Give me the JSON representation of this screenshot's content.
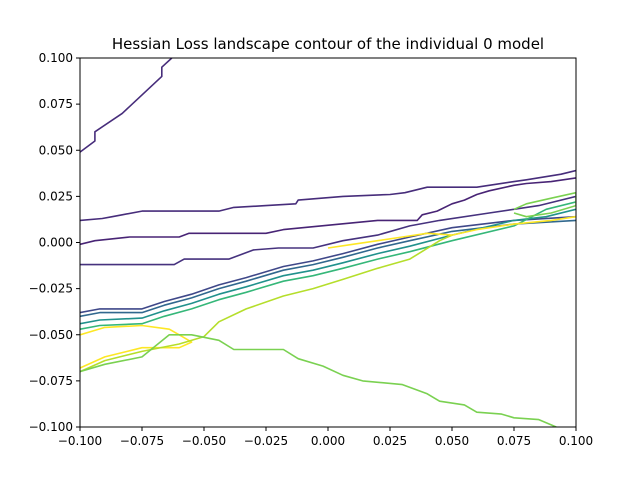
{
  "chart_data": {
    "type": "contour",
    "title": "Hessian Loss landscape contour of the individual 0 model",
    "xlabel": "",
    "ylabel": "",
    "xlim": [
      -0.1,
      0.1
    ],
    "ylim": [
      -0.1,
      0.1
    ],
    "grid": false,
    "xticks": [
      -0.1,
      -0.075,
      -0.05,
      -0.025,
      0.0,
      0.025,
      0.05,
      0.075,
      0.1
    ],
    "xtick_labels": [
      "−0.100",
      "−0.075",
      "−0.050",
      "−0.025",
      "0.000",
      "0.025",
      "0.050",
      "0.075",
      "0.100"
    ],
    "yticks": [
      -0.1,
      -0.075,
      -0.05,
      -0.025,
      0.0,
      0.025,
      0.05,
      0.075,
      0.1
    ],
    "ytick_labels": [
      "−0.100",
      "−0.075",
      "−0.050",
      "−0.025",
      "0.000",
      "0.025",
      "0.050",
      "0.075",
      "0.100"
    ],
    "contours": [
      {
        "color": "#472d7b",
        "points": [
          [
            -0.1,
            0.049
          ],
          [
            -0.094,
            0.055
          ],
          [
            -0.094,
            0.06
          ],
          [
            -0.083,
            0.07
          ],
          [
            -0.075,
            0.08
          ],
          [
            -0.067,
            0.09
          ],
          [
            -0.067,
            0.095
          ],
          [
            -0.063,
            0.1
          ]
        ]
      },
      {
        "color": "#472d7b",
        "points": [
          [
            -0.1,
            0.012
          ],
          [
            -0.091,
            0.013
          ],
          [
            -0.087,
            0.014
          ],
          [
            -0.083,
            0.015
          ],
          [
            -0.075,
            0.017
          ],
          [
            -0.044,
            0.017
          ],
          [
            -0.038,
            0.019
          ],
          [
            -0.025,
            0.02
          ],
          [
            -0.013,
            0.021
          ],
          [
            -0.012,
            0.023
          ],
          [
            0.006,
            0.025
          ],
          [
            0.025,
            0.026
          ],
          [
            0.031,
            0.027
          ],
          [
            0.04,
            0.03
          ],
          [
            0.06,
            0.03
          ],
          [
            0.065,
            0.031
          ],
          [
            0.075,
            0.033
          ],
          [
            0.08,
            0.034
          ],
          [
            0.094,
            0.037
          ],
          [
            0.1,
            0.039
          ]
        ]
      },
      {
        "color": "#482475",
        "points": [
          [
            -0.1,
            -0.001
          ],
          [
            -0.094,
            0.001
          ],
          [
            -0.08,
            0.003
          ],
          [
            -0.06,
            0.003
          ],
          [
            -0.056,
            0.005
          ],
          [
            -0.025,
            0.005
          ],
          [
            -0.018,
            0.007
          ],
          [
            0.02,
            0.012
          ],
          [
            0.036,
            0.012
          ],
          [
            0.038,
            0.015
          ],
          [
            0.044,
            0.017
          ],
          [
            0.05,
            0.021
          ],
          [
            0.055,
            0.023
          ],
          [
            0.06,
            0.026
          ],
          [
            0.065,
            0.028
          ],
          [
            0.075,
            0.031
          ],
          [
            0.08,
            0.032
          ],
          [
            0.09,
            0.033
          ],
          [
            0.1,
            0.035
          ]
        ]
      },
      {
        "color": "#46327e",
        "points": [
          [
            -0.1,
            -0.012
          ],
          [
            -0.062,
            -0.012
          ],
          [
            -0.058,
            -0.009
          ],
          [
            -0.04,
            -0.009
          ],
          [
            -0.03,
            -0.004
          ],
          [
            -0.02,
            -0.003
          ],
          [
            -0.006,
            -0.003
          ],
          [
            0.006,
            0.001
          ],
          [
            0.02,
            0.004
          ],
          [
            0.033,
            0.009
          ],
          [
            0.045,
            0.012
          ],
          [
            0.065,
            0.016
          ],
          [
            0.085,
            0.02
          ],
          [
            0.1,
            0.025
          ]
        ]
      },
      {
        "color": "#3f4889",
        "points": [
          [
            -0.1,
            -0.038
          ],
          [
            -0.092,
            -0.036
          ],
          [
            -0.075,
            -0.036
          ],
          [
            -0.066,
            -0.032
          ],
          [
            -0.055,
            -0.028
          ],
          [
            -0.044,
            -0.023
          ],
          [
            -0.033,
            -0.019
          ],
          [
            -0.018,
            -0.013
          ],
          [
            -0.006,
            -0.01
          ],
          [
            0.006,
            -0.006
          ],
          [
            0.02,
            -0.001
          ],
          [
            0.033,
            0.003
          ],
          [
            0.05,
            0.008
          ],
          [
            0.075,
            0.012
          ],
          [
            0.1,
            0.014
          ]
        ]
      },
      {
        "color": "#31688e",
        "points": [
          [
            -0.1,
            -0.04
          ],
          [
            -0.092,
            -0.038
          ],
          [
            -0.075,
            -0.038
          ],
          [
            -0.066,
            -0.034
          ],
          [
            -0.055,
            -0.03
          ],
          [
            -0.044,
            -0.025
          ],
          [
            -0.033,
            -0.021
          ],
          [
            -0.018,
            -0.015
          ],
          [
            -0.006,
            -0.012
          ],
          [
            0.006,
            -0.008
          ],
          [
            0.02,
            -0.003
          ],
          [
            0.033,
            0.001
          ],
          [
            0.05,
            0.006
          ],
          [
            0.075,
            0.01
          ],
          [
            0.1,
            0.012
          ]
        ]
      },
      {
        "color": "#21918c",
        "points": [
          [
            -0.1,
            -0.044
          ],
          [
            -0.092,
            -0.042
          ],
          [
            -0.075,
            -0.041
          ],
          [
            -0.066,
            -0.037
          ],
          [
            -0.055,
            -0.033
          ],
          [
            -0.044,
            -0.028
          ],
          [
            -0.033,
            -0.024
          ],
          [
            -0.018,
            -0.018
          ],
          [
            -0.006,
            -0.015
          ],
          [
            0.006,
            -0.011
          ],
          [
            0.02,
            -0.006
          ],
          [
            0.033,
            -0.002
          ],
          [
            0.05,
            0.004
          ],
          [
            0.075,
            0.012
          ],
          [
            0.088,
            0.014
          ],
          [
            0.1,
            0.018
          ]
        ]
      },
      {
        "color": "#35b779",
        "points": [
          [
            -0.1,
            -0.047
          ],
          [
            -0.092,
            -0.045
          ],
          [
            -0.075,
            -0.044
          ],
          [
            -0.066,
            -0.04
          ],
          [
            -0.055,
            -0.036
          ],
          [
            -0.044,
            -0.031
          ],
          [
            -0.033,
            -0.027
          ],
          [
            -0.018,
            -0.021
          ],
          [
            -0.006,
            -0.018
          ],
          [
            0.006,
            -0.014
          ],
          [
            0.02,
            -0.009
          ],
          [
            0.033,
            -0.005
          ],
          [
            0.05,
            0.001
          ],
          [
            0.075,
            0.009
          ],
          [
            0.088,
            0.018
          ],
          [
            0.1,
            0.022
          ]
        ]
      },
      {
        "color": "#fde725",
        "points": [
          [
            -0.1,
            -0.05
          ],
          [
            -0.09,
            -0.046
          ],
          [
            -0.075,
            -0.045
          ],
          [
            -0.064,
            -0.047
          ],
          [
            -0.06,
            -0.05
          ],
          [
            -0.055,
            -0.054
          ],
          [
            -0.06,
            -0.057
          ],
          [
            -0.075,
            -0.057
          ],
          [
            -0.09,
            -0.062
          ],
          [
            -0.1,
            -0.068
          ]
        ]
      },
      {
        "color": "#b5de2b",
        "points": [
          [
            -0.1,
            -0.07
          ],
          [
            -0.09,
            -0.064
          ],
          [
            -0.075,
            -0.059
          ],
          [
            -0.06,
            -0.055
          ],
          [
            -0.05,
            -0.051
          ],
          [
            -0.044,
            -0.043
          ],
          [
            -0.033,
            -0.036
          ],
          [
            -0.018,
            -0.029
          ],
          [
            -0.006,
            -0.025
          ],
          [
            0.006,
            -0.02
          ],
          [
            0.02,
            -0.014
          ],
          [
            0.033,
            -0.009
          ],
          [
            0.045,
            0.001
          ],
          [
            0.05,
            0.004
          ]
        ]
      },
      {
        "color": "#7ad151",
        "points": [
          [
            -0.1,
            -0.07
          ],
          [
            -0.09,
            -0.066
          ],
          [
            -0.075,
            -0.062
          ],
          [
            -0.064,
            -0.05
          ],
          [
            -0.055,
            -0.05
          ],
          [
            -0.044,
            -0.053
          ],
          [
            -0.038,
            -0.058
          ],
          [
            -0.018,
            -0.058
          ],
          [
            -0.012,
            -0.063
          ],
          [
            -0.002,
            -0.067
          ],
          [
            0.006,
            -0.072
          ],
          [
            0.014,
            -0.075
          ],
          [
            0.03,
            -0.077
          ],
          [
            0.04,
            -0.082
          ],
          [
            0.045,
            -0.086
          ],
          [
            0.055,
            -0.088
          ],
          [
            0.06,
            -0.092
          ],
          [
            0.07,
            -0.093
          ],
          [
            0.075,
            -0.095
          ],
          [
            0.085,
            -0.096
          ],
          [
            0.092,
            -0.1
          ]
        ]
      },
      {
        "color": "#7ad151",
        "points": [
          [
            0.075,
            0.016
          ],
          [
            0.08,
            0.014
          ],
          [
            0.09,
            0.016
          ],
          [
            0.1,
            0.02
          ],
          [
            0.1,
            0.027
          ],
          [
            0.09,
            0.024
          ],
          [
            0.08,
            0.021
          ],
          [
            0.075,
            0.018
          ]
        ]
      },
      {
        "color": "#fde725",
        "points": [
          [
            0.0,
            -0.003
          ],
          [
            0.01,
            -0.001
          ],
          [
            0.02,
            0.001
          ],
          [
            0.03,
            0.003
          ],
          [
            0.04,
            0.005
          ],
          [
            0.05,
            0.004
          ],
          [
            0.06,
            0.007
          ],
          [
            0.075,
            0.01
          ],
          [
            0.09,
            0.012
          ],
          [
            0.1,
            0.014
          ]
        ]
      }
    ]
  }
}
